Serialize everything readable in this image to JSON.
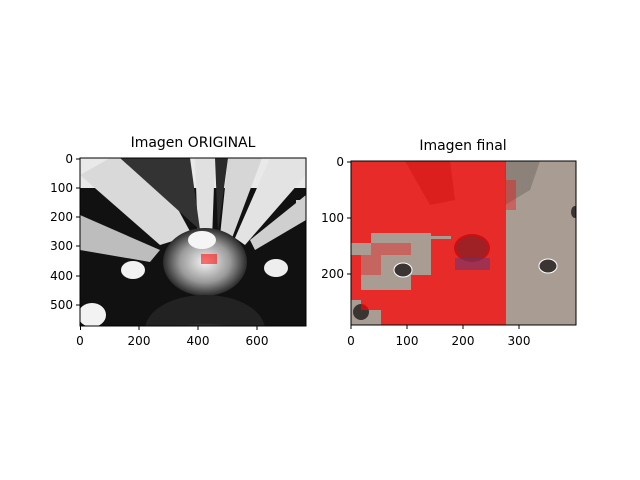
{
  "figure": {
    "panels": [
      {
        "title": "Imagen ORIGINAL",
        "image_description": "grayscale wheel/gear image with small red highlight",
        "x_ticks": [
          "0",
          "200",
          "400",
          "600"
        ],
        "y_ticks": [
          "0",
          "100",
          "200",
          "300",
          "400",
          "500"
        ]
      },
      {
        "title": "Imagen final",
        "image_description": "gear image with red block overlay segmentation",
        "x_ticks": [
          "0",
          "100",
          "200",
          "300"
        ],
        "y_ticks": [
          "0",
          "100",
          "200"
        ]
      }
    ]
  },
  "colors": {
    "overlay": "#ff0000",
    "gear_gray": "#a89c93",
    "dark": "#111111"
  }
}
